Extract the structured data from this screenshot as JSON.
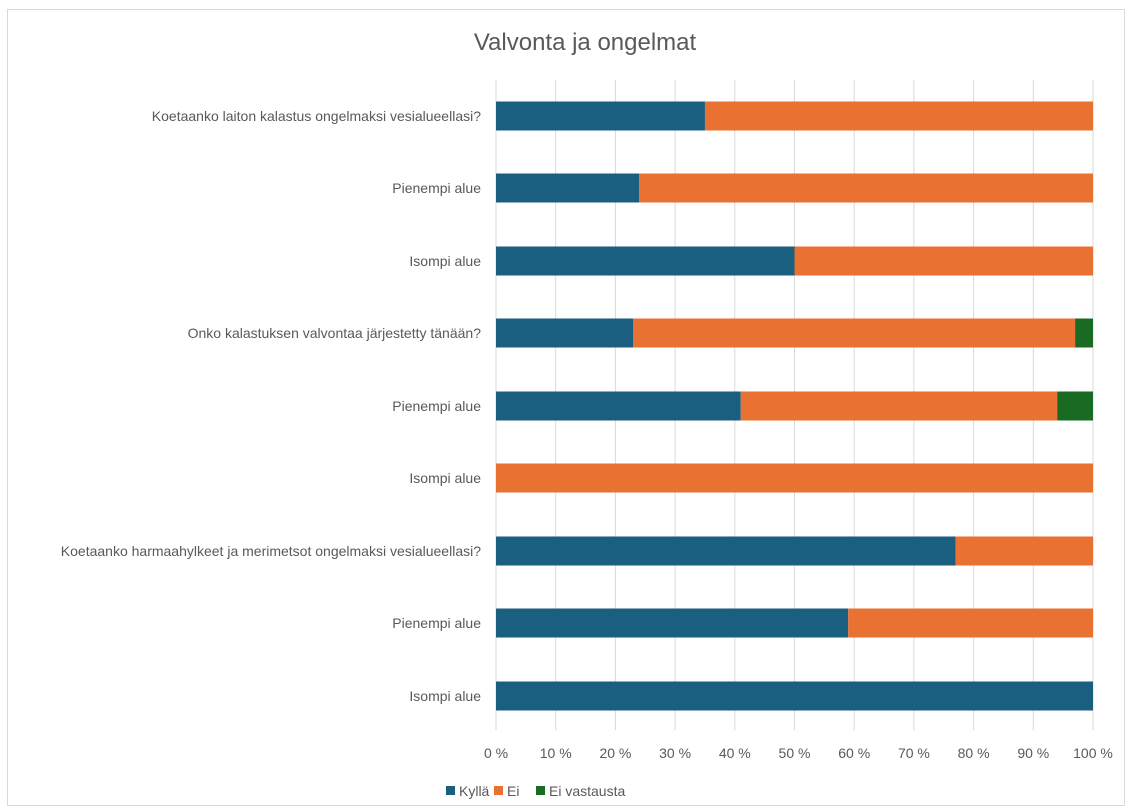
{
  "chart_data": {
    "type": "bar",
    "orientation": "horizontal",
    "stacked": "100%",
    "title": "Valvonta ja ongelmat",
    "categories": [
      "Koetaanko laiton kalastus ongelmaksi vesialueellasi?",
      "Pienempi alue",
      "Isompi alue",
      "Onko kalastuksen valvontaa järjestetty tänään?",
      "Pienempi alue",
      "Isompi alue",
      "Koetaanko harmaahylkeet ja merimetsot ongelmaksi vesialueellasi?",
      "Pienempi alue",
      "Isompi alue"
    ],
    "series": [
      {
        "name": "Kyllä",
        "color": "#1a5e80",
        "values": [
          35,
          24,
          50,
          23,
          41,
          0,
          77,
          59,
          100
        ]
      },
      {
        "name": "Ei",
        "color": "#e97132",
        "values": [
          65,
          76,
          50,
          74,
          53,
          100,
          23,
          41,
          0
        ]
      },
      {
        "name": "Ei vastausta",
        "color": "#196b24",
        "values": [
          0,
          0,
          0,
          3,
          6,
          0,
          0,
          0,
          0
        ]
      }
    ],
    "xlim": [
      0,
      100
    ],
    "xticks": [
      "0 %",
      "10 %",
      "20 %",
      "30 %",
      "40 %",
      "50 %",
      "60 %",
      "70 %",
      "80 %",
      "90 %",
      "100 %"
    ],
    "grid": true,
    "legend": "bottom"
  }
}
